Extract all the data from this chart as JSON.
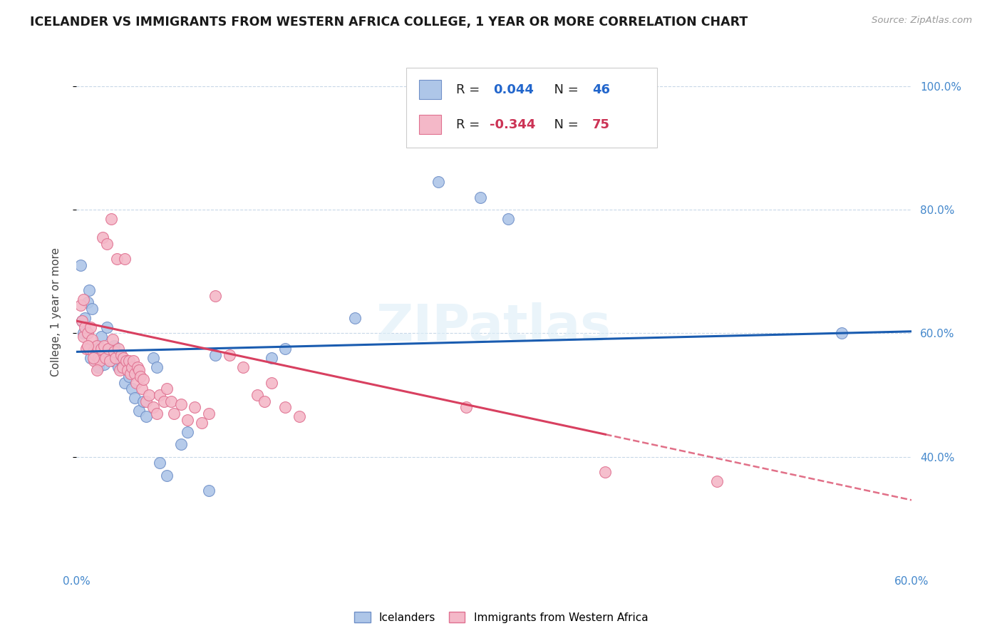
{
  "title": "ICELANDER VS IMMIGRANTS FROM WESTERN AFRICA COLLEGE, 1 YEAR OR MORE CORRELATION CHART",
  "source": "Source: ZipAtlas.com",
  "ylabel": "College, 1 year or more",
  "xlim": [
    0.0,
    0.6
  ],
  "ylim": [
    0.22,
    1.05
  ],
  "yticks": [
    0.4,
    0.6,
    0.8,
    1.0
  ],
  "xticks": [
    0.0,
    0.1,
    0.2,
    0.3,
    0.4,
    0.5,
    0.6
  ],
  "blue_r": 0.044,
  "blue_n": 46,
  "pink_r": -0.344,
  "pink_n": 75,
  "blue_fill": "#aec6e8",
  "pink_fill": "#f4b8c8",
  "blue_edge": "#7090c8",
  "pink_edge": "#e07090",
  "trend_blue": "#1a5cb0",
  "trend_pink": "#d84060",
  "legend_blue_label": "Icelanders",
  "legend_pink_label": "Immigrants from Western Africa",
  "watermark": "ZIPatlas",
  "blue_points": [
    [
      0.003,
      0.71
    ],
    [
      0.004,
      0.62
    ],
    [
      0.005,
      0.6
    ],
    [
      0.006,
      0.625
    ],
    [
      0.008,
      0.65
    ],
    [
      0.009,
      0.67
    ],
    [
      0.01,
      0.56
    ],
    [
      0.011,
      0.64
    ],
    [
      0.013,
      0.575
    ],
    [
      0.014,
      0.555
    ],
    [
      0.015,
      0.58
    ],
    [
      0.016,
      0.545
    ],
    [
      0.017,
      0.57
    ],
    [
      0.018,
      0.595
    ],
    [
      0.019,
      0.565
    ],
    [
      0.02,
      0.55
    ],
    [
      0.022,
      0.61
    ],
    [
      0.023,
      0.565
    ],
    [
      0.024,
      0.57
    ],
    [
      0.026,
      0.555
    ],
    [
      0.027,
      0.58
    ],
    [
      0.028,
      0.56
    ],
    [
      0.03,
      0.545
    ],
    [
      0.032,
      0.555
    ],
    [
      0.035,
      0.52
    ],
    [
      0.038,
      0.53
    ],
    [
      0.04,
      0.51
    ],
    [
      0.042,
      0.495
    ],
    [
      0.045,
      0.475
    ],
    [
      0.048,
      0.49
    ],
    [
      0.05,
      0.465
    ],
    [
      0.055,
      0.56
    ],
    [
      0.058,
      0.545
    ],
    [
      0.06,
      0.39
    ],
    [
      0.065,
      0.37
    ],
    [
      0.075,
      0.42
    ],
    [
      0.08,
      0.44
    ],
    [
      0.095,
      0.345
    ],
    [
      0.1,
      0.565
    ],
    [
      0.14,
      0.56
    ],
    [
      0.15,
      0.575
    ],
    [
      0.2,
      0.625
    ],
    [
      0.26,
      0.845
    ],
    [
      0.29,
      0.82
    ],
    [
      0.31,
      0.785
    ],
    [
      0.55,
      0.6
    ]
  ],
  "pink_points": [
    [
      0.003,
      0.645
    ],
    [
      0.004,
      0.62
    ],
    [
      0.005,
      0.595
    ],
    [
      0.006,
      0.61
    ],
    [
      0.007,
      0.575
    ],
    [
      0.008,
      0.6
    ],
    [
      0.009,
      0.575
    ],
    [
      0.01,
      0.61
    ],
    [
      0.011,
      0.59
    ],
    [
      0.012,
      0.57
    ],
    [
      0.013,
      0.555
    ],
    [
      0.014,
      0.565
    ],
    [
      0.015,
      0.58
    ],
    [
      0.016,
      0.56
    ],
    [
      0.017,
      0.555
    ],
    [
      0.018,
      0.575
    ],
    [
      0.019,
      0.755
    ],
    [
      0.02,
      0.58
    ],
    [
      0.021,
      0.56
    ],
    [
      0.022,
      0.745
    ],
    [
      0.023,
      0.575
    ],
    [
      0.024,
      0.555
    ],
    [
      0.025,
      0.785
    ],
    [
      0.026,
      0.59
    ],
    [
      0.027,
      0.57
    ],
    [
      0.028,
      0.56
    ],
    [
      0.029,
      0.72
    ],
    [
      0.03,
      0.575
    ],
    [
      0.031,
      0.54
    ],
    [
      0.032,
      0.565
    ],
    [
      0.033,
      0.545
    ],
    [
      0.034,
      0.56
    ],
    [
      0.035,
      0.72
    ],
    [
      0.036,
      0.555
    ],
    [
      0.037,
      0.54
    ],
    [
      0.038,
      0.555
    ],
    [
      0.039,
      0.535
    ],
    [
      0.04,
      0.545
    ],
    [
      0.041,
      0.555
    ],
    [
      0.042,
      0.535
    ],
    [
      0.043,
      0.52
    ],
    [
      0.044,
      0.545
    ],
    [
      0.045,
      0.54
    ],
    [
      0.046,
      0.53
    ],
    [
      0.047,
      0.51
    ],
    [
      0.048,
      0.525
    ],
    [
      0.05,
      0.49
    ],
    [
      0.052,
      0.5
    ],
    [
      0.055,
      0.48
    ],
    [
      0.058,
      0.47
    ],
    [
      0.06,
      0.5
    ],
    [
      0.063,
      0.49
    ],
    [
      0.065,
      0.51
    ],
    [
      0.068,
      0.49
    ],
    [
      0.07,
      0.47
    ],
    [
      0.075,
      0.485
    ],
    [
      0.08,
      0.46
    ],
    [
      0.085,
      0.48
    ],
    [
      0.09,
      0.455
    ],
    [
      0.095,
      0.47
    ],
    [
      0.1,
      0.66
    ],
    [
      0.11,
      0.565
    ],
    [
      0.12,
      0.545
    ],
    [
      0.13,
      0.5
    ],
    [
      0.135,
      0.49
    ],
    [
      0.14,
      0.52
    ],
    [
      0.15,
      0.48
    ],
    [
      0.16,
      0.465
    ],
    [
      0.28,
      0.48
    ],
    [
      0.38,
      0.375
    ],
    [
      0.46,
      0.36
    ],
    [
      0.005,
      0.655
    ],
    [
      0.008,
      0.58
    ],
    [
      0.012,
      0.56
    ],
    [
      0.015,
      0.54
    ]
  ]
}
